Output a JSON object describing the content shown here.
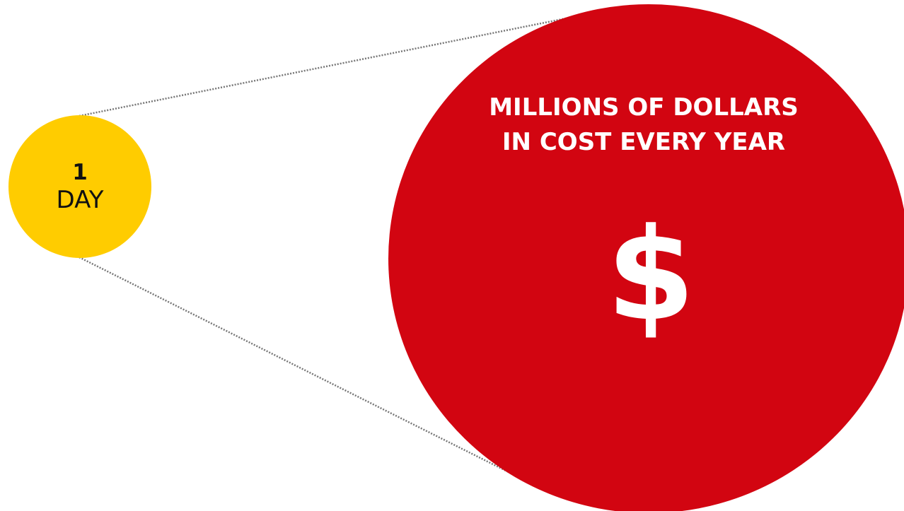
{
  "small_circle": {
    "number": "1",
    "unit": "DAY",
    "color": "#ffcc00"
  },
  "big_circle": {
    "caption_line1": "MILLIONS OF DOLLARS",
    "caption_line2": "IN COST EVERY YEAR",
    "symbol": "$",
    "color": "#d20511"
  },
  "connector_color": "#777777"
}
